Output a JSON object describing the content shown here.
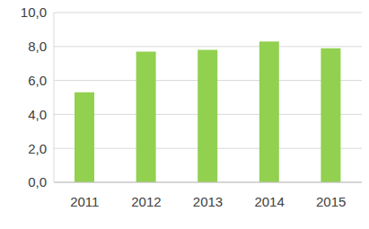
{
  "chart_data": {
    "type": "bar",
    "categories": [
      "2011",
      "2012",
      "2013",
      "2014",
      "2015"
    ],
    "values": [
      5.3,
      7.7,
      7.8,
      8.3,
      7.9
    ],
    "color": "#92d050",
    "ylim": [
      0,
      10
    ],
    "yticks": [
      {
        "value": 0,
        "label": "0,0"
      },
      {
        "value": 2,
        "label": "2,0"
      },
      {
        "value": 4,
        "label": "4,0"
      },
      {
        "value": 6,
        "label": "6,0"
      },
      {
        "value": 8,
        "label": "8,0"
      },
      {
        "value": 10,
        "label": "10,0"
      }
    ],
    "grid": true
  }
}
